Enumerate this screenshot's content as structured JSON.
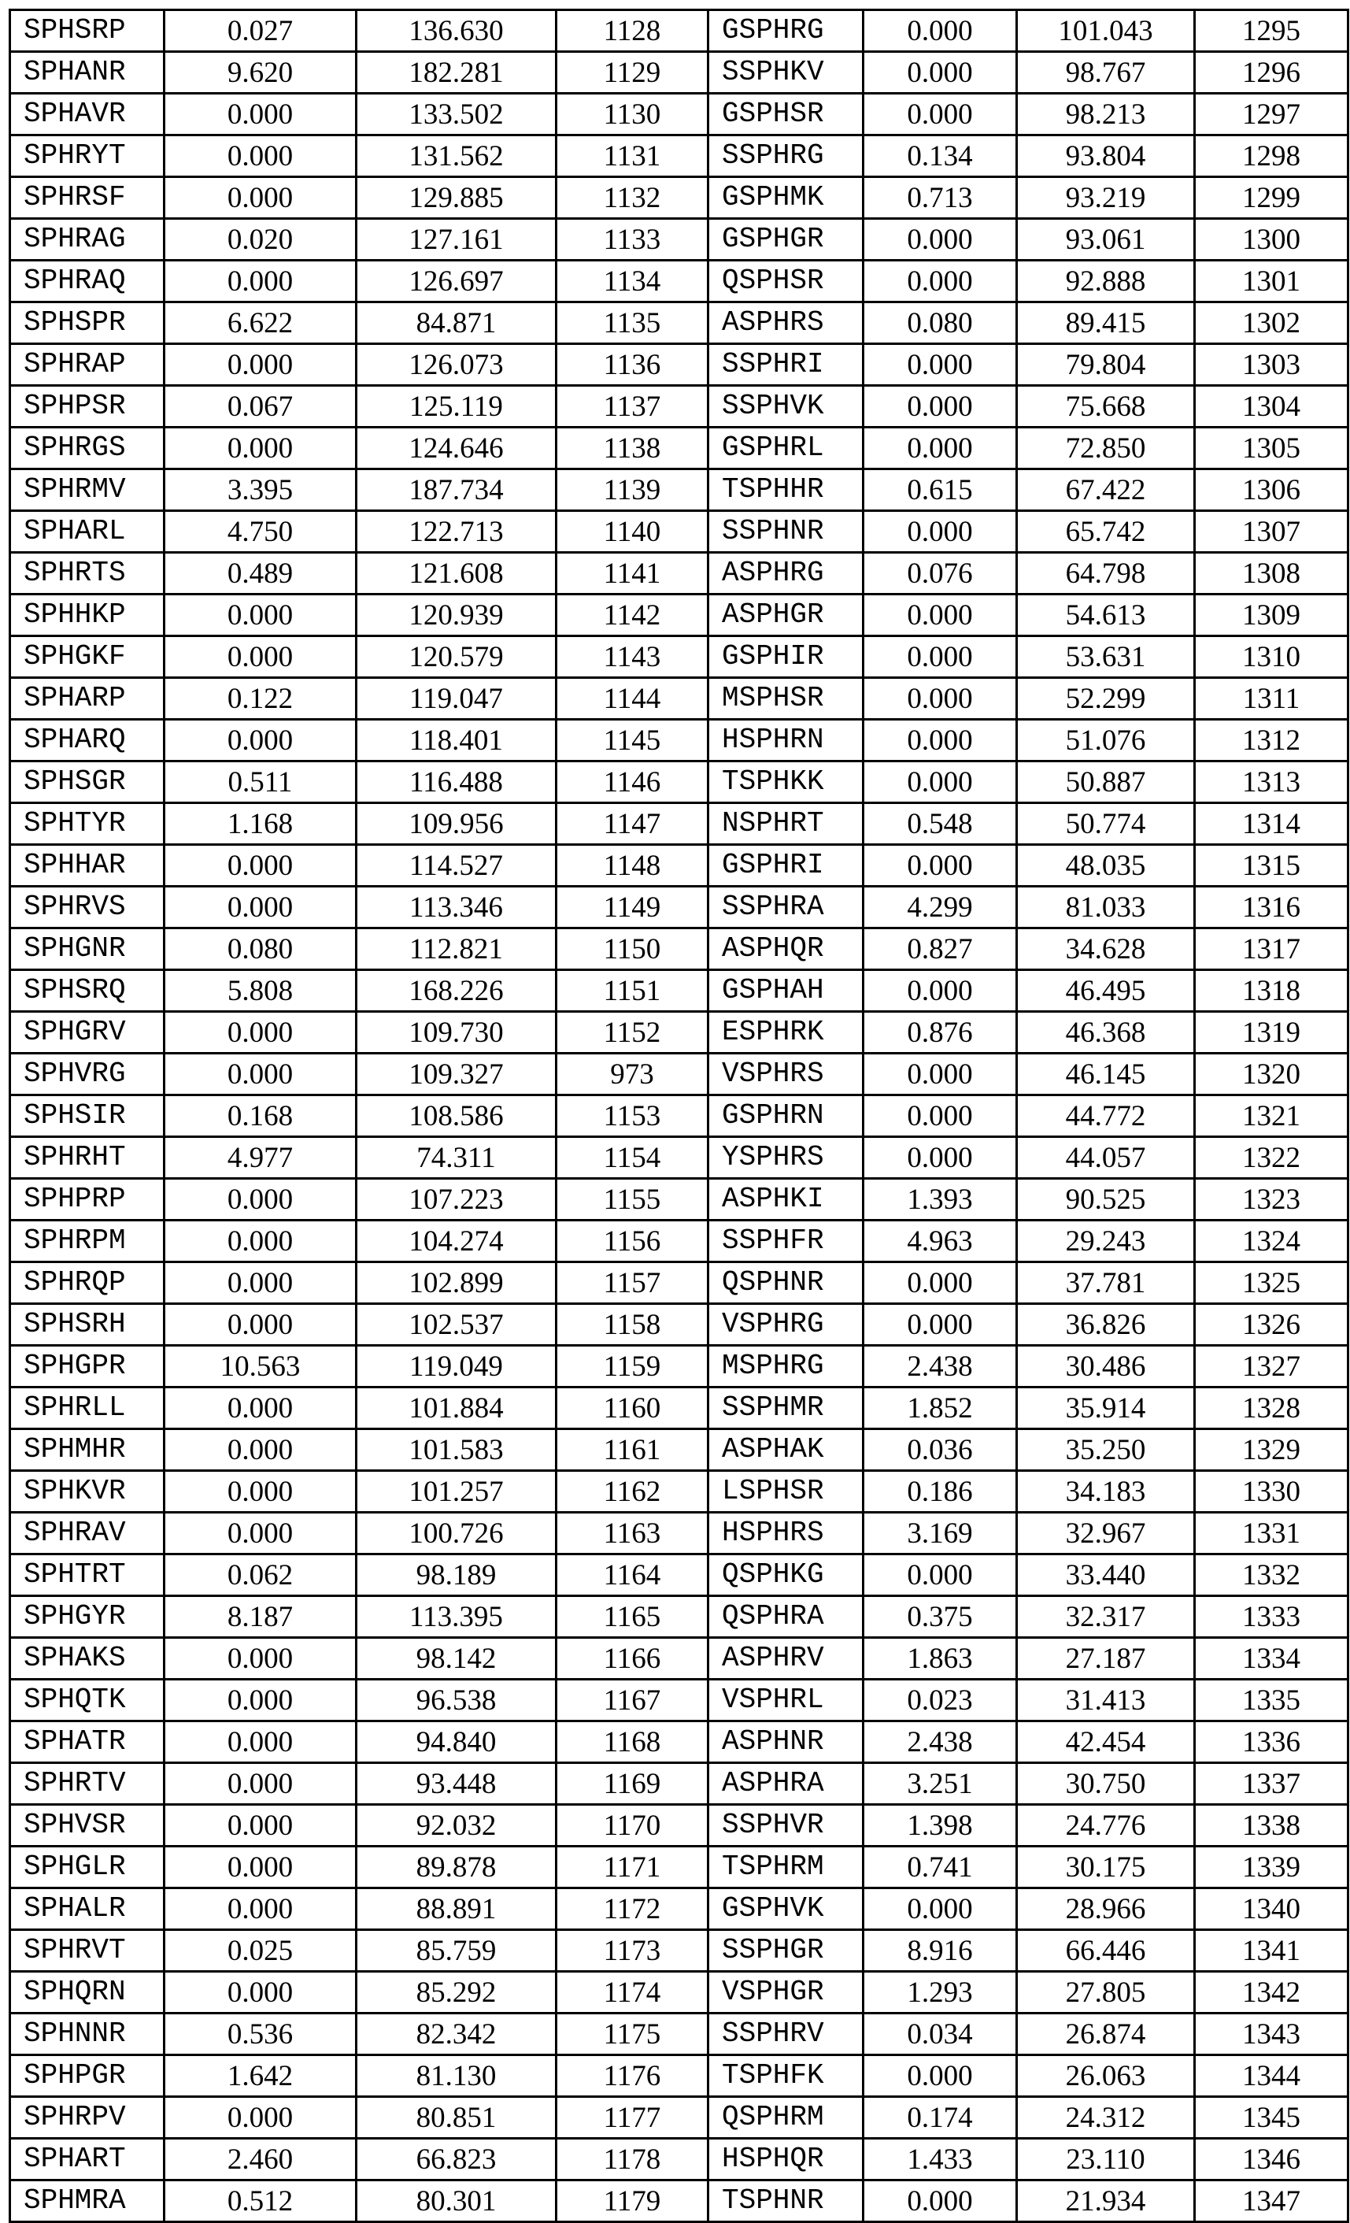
{
  "table": {
    "rows": [
      [
        "SPHSRP",
        "0.027",
        "136.630",
        "1128",
        "GSPHRG",
        "0.000",
        "101.043",
        "1295"
      ],
      [
        "SPHANR",
        "9.620",
        "182.281",
        "1129",
        "SSPHKV",
        "0.000",
        "98.767",
        "1296"
      ],
      [
        "SPHAVR",
        "0.000",
        "133.502",
        "1130",
        "GSPHSR",
        "0.000",
        "98.213",
        "1297"
      ],
      [
        "SPHRYT",
        "0.000",
        "131.562",
        "1131",
        "SSPHRG",
        "0.134",
        "93.804",
        "1298"
      ],
      [
        "SPHRSF",
        "0.000",
        "129.885",
        "1132",
        "GSPHMK",
        "0.713",
        "93.219",
        "1299"
      ],
      [
        "SPHRAG",
        "0.020",
        "127.161",
        "1133",
        "GSPHGR",
        "0.000",
        "93.061",
        "1300"
      ],
      [
        "SPHRAQ",
        "0.000",
        "126.697",
        "1134",
        "QSPHSR",
        "0.000",
        "92.888",
        "1301"
      ],
      [
        "SPHSPR",
        "6.622",
        "84.871",
        "1135",
        "ASPHRS",
        "0.080",
        "89.415",
        "1302"
      ],
      [
        "SPHRAP",
        "0.000",
        "126.073",
        "1136",
        "SSPHRI",
        "0.000",
        "79.804",
        "1303"
      ],
      [
        "SPHPSR",
        "0.067",
        "125.119",
        "1137",
        "SSPHVK",
        "0.000",
        "75.668",
        "1304"
      ],
      [
        "SPHRGS",
        "0.000",
        "124.646",
        "1138",
        "GSPHRL",
        "0.000",
        "72.850",
        "1305"
      ],
      [
        "SPHRMV",
        "3.395",
        "187.734",
        "1139",
        "TSPHHR",
        "0.615",
        "67.422",
        "1306"
      ],
      [
        "SPHARL",
        "4.750",
        "122.713",
        "1140",
        "SSPHNR",
        "0.000",
        "65.742",
        "1307"
      ],
      [
        "SPHRTS",
        "0.489",
        "121.608",
        "1141",
        "ASPHRG",
        "0.076",
        "64.798",
        "1308"
      ],
      [
        "SPHHKP",
        "0.000",
        "120.939",
        "1142",
        "ASPHGR",
        "0.000",
        "54.613",
        "1309"
      ],
      [
        "SPHGKF",
        "0.000",
        "120.579",
        "1143",
        "GSPHIR",
        "0.000",
        "53.631",
        "1310"
      ],
      [
        "SPHARP",
        "0.122",
        "119.047",
        "1144",
        "MSPHSR",
        "0.000",
        "52.299",
        "1311"
      ],
      [
        "SPHARQ",
        "0.000",
        "118.401",
        "1145",
        "HSPHRN",
        "0.000",
        "51.076",
        "1312"
      ],
      [
        "SPHSGR",
        "0.511",
        "116.488",
        "1146",
        "TSPHKK",
        "0.000",
        "50.887",
        "1313"
      ],
      [
        "SPHTYR",
        "1.168",
        "109.956",
        "1147",
        "NSPHRT",
        "0.548",
        "50.774",
        "1314"
      ],
      [
        "SPHHAR",
        "0.000",
        "114.527",
        "1148",
        "GSPHRI",
        "0.000",
        "48.035",
        "1315"
      ],
      [
        "SPHRVS",
        "0.000",
        "113.346",
        "1149",
        "SSPHRA",
        "4.299",
        "81.033",
        "1316"
      ],
      [
        "SPHGNR",
        "0.080",
        "112.821",
        "1150",
        "ASPHQR",
        "0.827",
        "34.628",
        "1317"
      ],
      [
        "SPHSRQ",
        "5.808",
        "168.226",
        "1151",
        "GSPHAH",
        "0.000",
        "46.495",
        "1318"
      ],
      [
        "SPHGRV",
        "0.000",
        "109.730",
        "1152",
        "ESPHRK",
        "0.876",
        "46.368",
        "1319"
      ],
      [
        "SPHVRG",
        "0.000",
        "109.327",
        "973",
        "VSPHRS",
        "0.000",
        "46.145",
        "1320"
      ],
      [
        "SPHSIR",
        "0.168",
        "108.586",
        "1153",
        "GSPHRN",
        "0.000",
        "44.772",
        "1321"
      ],
      [
        "SPHRHT",
        "4.977",
        "74.311",
        "1154",
        "YSPHRS",
        "0.000",
        "44.057",
        "1322"
      ],
      [
        "SPHPRP",
        "0.000",
        "107.223",
        "1155",
        "ASPHKI",
        "1.393",
        "90.525",
        "1323"
      ],
      [
        "SPHRPM",
        "0.000",
        "104.274",
        "1156",
        "SSPHFR",
        "4.963",
        "29.243",
        "1324"
      ],
      [
        "SPHRQP",
        "0.000",
        "102.899",
        "1157",
        "QSPHNR",
        "0.000",
        "37.781",
        "1325"
      ],
      [
        "SPHSRH",
        "0.000",
        "102.537",
        "1158",
        "VSPHRG",
        "0.000",
        "36.826",
        "1326"
      ],
      [
        "SPHGPR",
        "10.563",
        "119.049",
        "1159",
        "MSPHRG",
        "2.438",
        "30.486",
        "1327"
      ],
      [
        "SPHRLL",
        "0.000",
        "101.884",
        "1160",
        "SSPHMR",
        "1.852",
        "35.914",
        "1328"
      ],
      [
        "SPHMHR",
        "0.000",
        "101.583",
        "1161",
        "ASPHAK",
        "0.036",
        "35.250",
        "1329"
      ],
      [
        "SPHKVR",
        "0.000",
        "101.257",
        "1162",
        "LSPHSR",
        "0.186",
        "34.183",
        "1330"
      ],
      [
        "SPHRAV",
        "0.000",
        "100.726",
        "1163",
        "HSPHRS",
        "3.169",
        "32.967",
        "1331"
      ],
      [
        "SPHTRT",
        "0.062",
        "98.189",
        "1164",
        "QSPHKG",
        "0.000",
        "33.440",
        "1332"
      ],
      [
        "SPHGYR",
        "8.187",
        "113.395",
        "1165",
        "QSPHRA",
        "0.375",
        "32.317",
        "1333"
      ],
      [
        "SPHAKS",
        "0.000",
        "98.142",
        "1166",
        "ASPHRV",
        "1.863",
        "27.187",
        "1334"
      ],
      [
        "SPHQTK",
        "0.000",
        "96.538",
        "1167",
        "VSPHRL",
        "0.023",
        "31.413",
        "1335"
      ],
      [
        "SPHATR",
        "0.000",
        "94.840",
        "1168",
        "ASPHNR",
        "2.438",
        "42.454",
        "1336"
      ],
      [
        "SPHRTV",
        "0.000",
        "93.448",
        "1169",
        "ASPHRA",
        "3.251",
        "30.750",
        "1337"
      ],
      [
        "SPHVSR",
        "0.000",
        "92.032",
        "1170",
        "SSPHVR",
        "1.398",
        "24.776",
        "1338"
      ],
      [
        "SPHGLR",
        "0.000",
        "89.878",
        "1171",
        "TSPHRM",
        "0.741",
        "30.175",
        "1339"
      ],
      [
        "SPHALR",
        "0.000",
        "88.891",
        "1172",
        "GSPHVK",
        "0.000",
        "28.966",
        "1340"
      ],
      [
        "SPHRVT",
        "0.025",
        "85.759",
        "1173",
        "SSPHGR",
        "8.916",
        "66.446",
        "1341"
      ],
      [
        "SPHQRN",
        "0.000",
        "85.292",
        "1174",
        "VSPHGR",
        "1.293",
        "27.805",
        "1342"
      ],
      [
        "SPHNNR",
        "0.536",
        "82.342",
        "1175",
        "SSPHRV",
        "0.034",
        "26.874",
        "1343"
      ],
      [
        "SPHPGR",
        "1.642",
        "81.130",
        "1176",
        "TSPHFK",
        "0.000",
        "26.063",
        "1344"
      ],
      [
        "SPHRPV",
        "0.000",
        "80.851",
        "1177",
        "QSPHRM",
        "0.174",
        "24.312",
        "1345"
      ],
      [
        "SPHART",
        "2.460",
        "66.823",
        "1178",
        "HSPHQR",
        "1.433",
        "23.110",
        "1346"
      ],
      [
        "SPHMRA",
        "0.512",
        "80.301",
        "1179",
        "TSPHNR",
        "0.000",
        "21.934",
        "1347"
      ]
    ]
  }
}
